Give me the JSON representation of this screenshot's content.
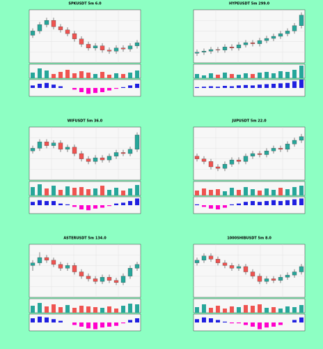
{
  "chart_data": [
    {
      "type": "candlestick",
      "title": "SPKUSDT 5m 6.0",
      "open": [
        52,
        60,
        72,
        80,
        68,
        62,
        55,
        45,
        35,
        28,
        32,
        24,
        22,
        28,
        26,
        32
      ],
      "high": [
        65,
        77,
        85,
        85,
        73,
        67,
        60,
        50,
        40,
        37,
        37,
        29,
        33,
        33,
        37,
        43
      ],
      "low": [
        47,
        55,
        67,
        63,
        57,
        50,
        40,
        30,
        23,
        23,
        19,
        17,
        17,
        21,
        21,
        27
      ],
      "close": [
        60,
        72,
        80,
        68,
        62,
        55,
        45,
        35,
        28,
        32,
        24,
        22,
        28,
        26,
        32,
        38
      ],
      "volume": [
        40,
        70,
        55,
        30,
        45,
        60,
        35,
        50,
        40,
        30,
        45,
        25,
        35,
        30,
        40,
        55
      ],
      "macd": [
        0.3,
        0.5,
        0.6,
        0.4,
        0.2,
        0,
        -0.2,
        -0.5,
        -0.7,
        -0.6,
        -0.5,
        -0.3,
        -0.1,
        0.1,
        0.3,
        0.5
      ],
      "ylim": [
        0,
        100
      ],
      "volume_ylim": [
        0,
        100
      ],
      "macd_ylim": [
        -1,
        1
      ],
      "up_color": "#26a69a",
      "down_color": "#ef5350",
      "macd_up_color": "#1f1fe0",
      "macd_down_color": "#ff00cc",
      "grid": true
    },
    {
      "type": "candlestick",
      "title": "HYPEUSDT 5m 299.0",
      "open": [
        18,
        20,
        22,
        25,
        24,
        30,
        28,
        34,
        38,
        36,
        42,
        46,
        50,
        55,
        60,
        70
      ],
      "high": [
        25,
        27,
        30,
        30,
        35,
        35,
        39,
        43,
        43,
        47,
        51,
        55,
        60,
        65,
        75,
        95
      ],
      "low": [
        13,
        15,
        17,
        19,
        19,
        23,
        23,
        29,
        31,
        31,
        37,
        41,
        45,
        50,
        55,
        65
      ],
      "close": [
        20,
        22,
        25,
        24,
        30,
        28,
        34,
        38,
        36,
        42,
        46,
        50,
        55,
        60,
        70,
        90
      ],
      "volume": [
        30,
        20,
        35,
        25,
        40,
        30,
        25,
        35,
        30,
        40,
        45,
        35,
        50,
        45,
        60,
        90
      ],
      "macd": [
        0.1,
        0.15,
        0.2,
        0.15,
        0.25,
        0.2,
        0.3,
        0.35,
        0.3,
        0.4,
        0.45,
        0.5,
        0.55,
        0.6,
        0.8,
        1
      ],
      "ylim": [
        0,
        100
      ],
      "volume_ylim": [
        0,
        100
      ],
      "macd_ylim": [
        -1,
        1
      ],
      "up_color": "#26a69a",
      "down_color": "#ef5350",
      "macd_up_color": "#1f1fe0",
      "macd_down_color": "#ff00cc",
      "grid": true
    },
    {
      "type": "candlestick",
      "title": "WIFUSDT 5m 36.0",
      "open": [
        55,
        60,
        72,
        65,
        70,
        58,
        62,
        50,
        40,
        35,
        42,
        38,
        45,
        52,
        50,
        58
      ],
      "high": [
        65,
        77,
        77,
        75,
        75,
        67,
        67,
        55,
        45,
        47,
        47,
        50,
        57,
        57,
        63,
        90
      ],
      "low": [
        50,
        55,
        60,
        60,
        53,
        53,
        45,
        35,
        30,
        30,
        33,
        33,
        40,
        45,
        45,
        53
      ],
      "close": [
        60,
        72,
        65,
        70,
        58,
        62,
        50,
        40,
        35,
        42,
        38,
        45,
        52,
        50,
        58,
        85
      ],
      "volume": [
        60,
        80,
        50,
        70,
        40,
        65,
        55,
        60,
        45,
        50,
        70,
        40,
        55,
        35,
        50,
        75
      ],
      "macd": [
        0.4,
        0.6,
        0.5,
        0.5,
        0.2,
        0.1,
        -0.2,
        -0.5,
        -0.6,
        -0.4,
        -0.3,
        -0.1,
        0.2,
        0.3,
        0.5,
        0.8
      ],
      "ylim": [
        0,
        100
      ],
      "volume_ylim": [
        0,
        100
      ],
      "macd_ylim": [
        -1,
        1
      ],
      "up_color": "#26a69a",
      "down_color": "#ef5350",
      "macd_up_color": "#1f1fe0",
      "macd_down_color": "#ff00cc",
      "grid": true
    },
    {
      "type": "candlestick",
      "title": "JUPUSDT 5m 22.0",
      "open": [
        45,
        40,
        35,
        25,
        22,
        30,
        38,
        35,
        45,
        50,
        48,
        55,
        60,
        58,
        68,
        75
      ],
      "high": [
        50,
        45,
        40,
        30,
        35,
        43,
        43,
        50,
        55,
        55,
        60,
        65,
        65,
        73,
        80,
        87
      ],
      "low": [
        35,
        30,
        20,
        17,
        17,
        25,
        30,
        30,
        40,
        43,
        43,
        50,
        53,
        53,
        63,
        70
      ],
      "close": [
        40,
        35,
        25,
        22,
        30,
        38,
        35,
        45,
        50,
        48,
        55,
        60,
        58,
        68,
        75,
        82
      ],
      "volume": [
        35,
        50,
        40,
        45,
        30,
        55,
        40,
        60,
        45,
        35,
        50,
        40,
        55,
        45,
        60,
        70
      ],
      "macd": [
        0.1,
        -0.2,
        -0.4,
        -0.5,
        -0.3,
        0.1,
        0.2,
        0.4,
        0.5,
        0.4,
        0.5,
        0.6,
        0.5,
        0.6,
        0.7,
        0.8
      ],
      "ylim": [
        0,
        100
      ],
      "volume_ylim": [
        0,
        100
      ],
      "macd_ylim": [
        -1,
        1
      ],
      "up_color": "#26a69a",
      "down_color": "#ef5350",
      "macd_up_color": "#1f1fe0",
      "macd_down_color": "#ff00cc",
      "grid": true
    },
    {
      "type": "candlestick",
      "title": "ASTERUSDT 5m 134.0",
      "open": [
        60,
        65,
        75,
        70,
        62,
        55,
        60,
        48,
        40,
        35,
        30,
        38,
        32,
        28,
        40,
        55
      ],
      "high": [
        70,
        85,
        80,
        75,
        67,
        65,
        65,
        53,
        45,
        40,
        43,
        43,
        37,
        45,
        60,
        67
      ],
      "low": [
        50,
        60,
        65,
        57,
        50,
        50,
        43,
        35,
        30,
        25,
        25,
        27,
        23,
        23,
        35,
        50
      ],
      "close": [
        65,
        75,
        70,
        62,
        55,
        60,
        48,
        40,
        35,
        30,
        38,
        32,
        28,
        40,
        55,
        62
      ],
      "volume": [
        50,
        70,
        45,
        60,
        40,
        55,
        35,
        50,
        45,
        40,
        35,
        45,
        30,
        50,
        65,
        60
      ],
      "macd": [
        0.5,
        0.7,
        0.6,
        0.4,
        0.2,
        0,
        -0.3,
        -0.5,
        -0.7,
        -0.8,
        -0.6,
        -0.5,
        -0.4,
        -0.1,
        0.3,
        0.5
      ],
      "ylim": [
        0,
        100
      ],
      "volume_ylim": [
        0,
        100
      ],
      "macd_ylim": [
        -1,
        1
      ],
      "up_color": "#26a69a",
      "down_color": "#ef5350",
      "macd_up_color": "#1f1fe0",
      "macd_down_color": "#ff00cc",
      "grid": true
    },
    {
      "type": "candlestick",
      "title": "1000SHIBUSDT 5m 8.0",
      "open": [
        65,
        70,
        78,
        72,
        65,
        60,
        55,
        58,
        48,
        40,
        30,
        35,
        32,
        38,
        42,
        48
      ],
      "high": [
        75,
        83,
        83,
        77,
        70,
        65,
        63,
        63,
        53,
        45,
        40,
        40,
        43,
        47,
        53,
        63
      ],
      "low": [
        60,
        65,
        67,
        60,
        55,
        50,
        50,
        43,
        35,
        25,
        25,
        27,
        27,
        33,
        37,
        43
      ],
      "close": [
        70,
        78,
        72,
        65,
        60,
        55,
        58,
        48,
        40,
        30,
        35,
        32,
        38,
        42,
        48,
        58
      ],
      "volume": [
        40,
        60,
        35,
        50,
        30,
        45,
        40,
        55,
        50,
        60,
        35,
        40,
        30,
        45,
        40,
        55
      ],
      "macd": [
        0.4,
        0.6,
        0.5,
        0.3,
        0.1,
        -0.1,
        -0.1,
        -0.3,
        -0.5,
        -0.8,
        -0.6,
        -0.5,
        -0.3,
        0,
        0.3,
        0.6
      ],
      "ylim": [
        0,
        100
      ],
      "volume_ylim": [
        0,
        100
      ],
      "macd_ylim": [
        -1,
        1
      ],
      "up_color": "#26a69a",
      "down_color": "#ef5350",
      "macd_up_color": "#1f1fe0",
      "macd_down_color": "#ff00cc",
      "grid": true
    }
  ]
}
